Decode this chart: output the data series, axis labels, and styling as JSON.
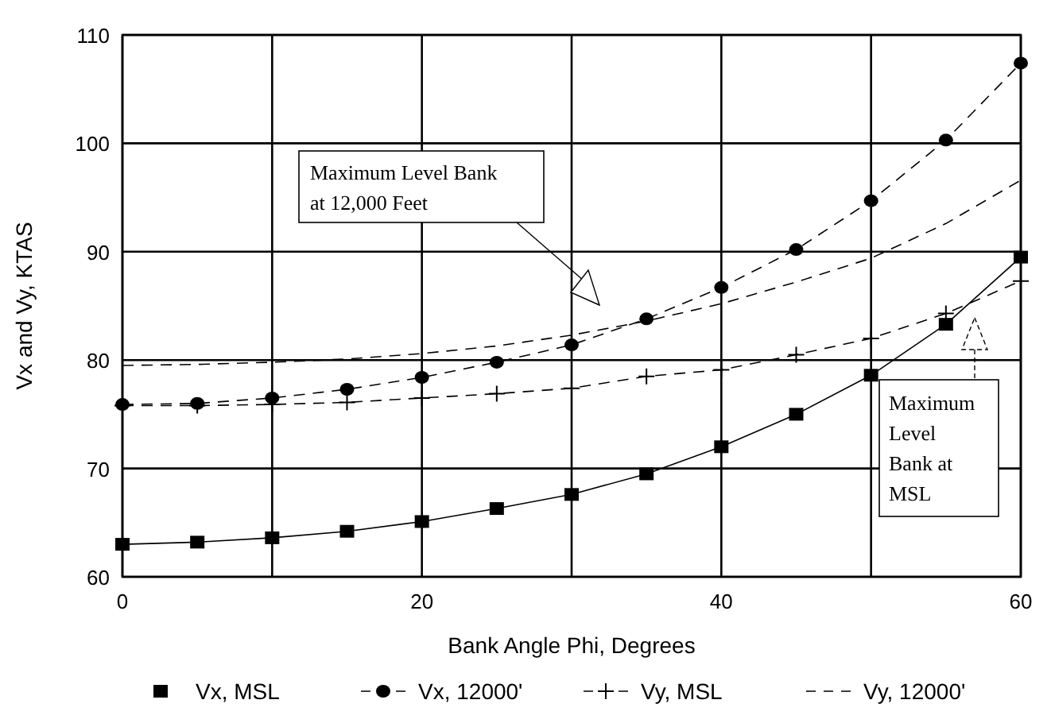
{
  "chart_data": {
    "type": "line",
    "xlabel": "Bank Angle Phi, Degrees",
    "ylabel": "Vx and Vy, KTAS",
    "x": [
      0,
      5,
      10,
      15,
      20,
      25,
      30,
      35,
      40,
      45,
      50,
      55,
      60
    ],
    "xlim": [
      0,
      60
    ],
    "xticks": [
      0,
      {
        "value": 10,
        "label": null
      },
      20,
      {
        "value": 30,
        "label": null
      },
      40,
      {
        "value": 50,
        "label": null
      },
      60
    ],
    "ylim": [
      60,
      110
    ],
    "yticks": [
      60,
      70,
      80,
      90,
      100,
      110
    ],
    "grid": true,
    "legend": "bottom",
    "series": [
      {
        "name": "Vx, MSL",
        "color": "#000000",
        "marker": "square",
        "line_style": "solid",
        "values": [
          63.0,
          63.2,
          63.6,
          64.2,
          65.1,
          66.3,
          67.6,
          69.5,
          72.0,
          75.0,
          78.6,
          83.3,
          89.5
        ]
      },
      {
        "name": "Vx, 12000'",
        "color": "#000000",
        "marker": "circle",
        "line_style": "dashed",
        "values": [
          75.9,
          76.0,
          76.5,
          77.3,
          78.4,
          79.8,
          81.4,
          83.8,
          86.7,
          90.2,
          94.7,
          100.3,
          107.4
        ]
      },
      {
        "name": "Vy, MSL",
        "color": "#000000",
        "marker": "cross",
        "line_style": "dashed",
        "values": [
          75.8,
          75.8,
          75.9,
          76.1,
          76.5,
          76.9,
          77.4,
          78.5,
          79.1,
          80.5,
          82.0,
          84.3,
          87.3
        ]
      },
      {
        "name": "Vy, 12000'",
        "color": "#000000",
        "marker": "none",
        "line_style": "dashed",
        "values": [
          79.5,
          79.6,
          79.8,
          80.1,
          80.6,
          81.3,
          82.3,
          83.6,
          85.2,
          87.2,
          89.4,
          92.6,
          96.6
        ]
      }
    ],
    "annotations": [
      "Maximum Level Bank at 12,000 Feet",
      "Maximum Level Bank at MSL"
    ]
  }
}
